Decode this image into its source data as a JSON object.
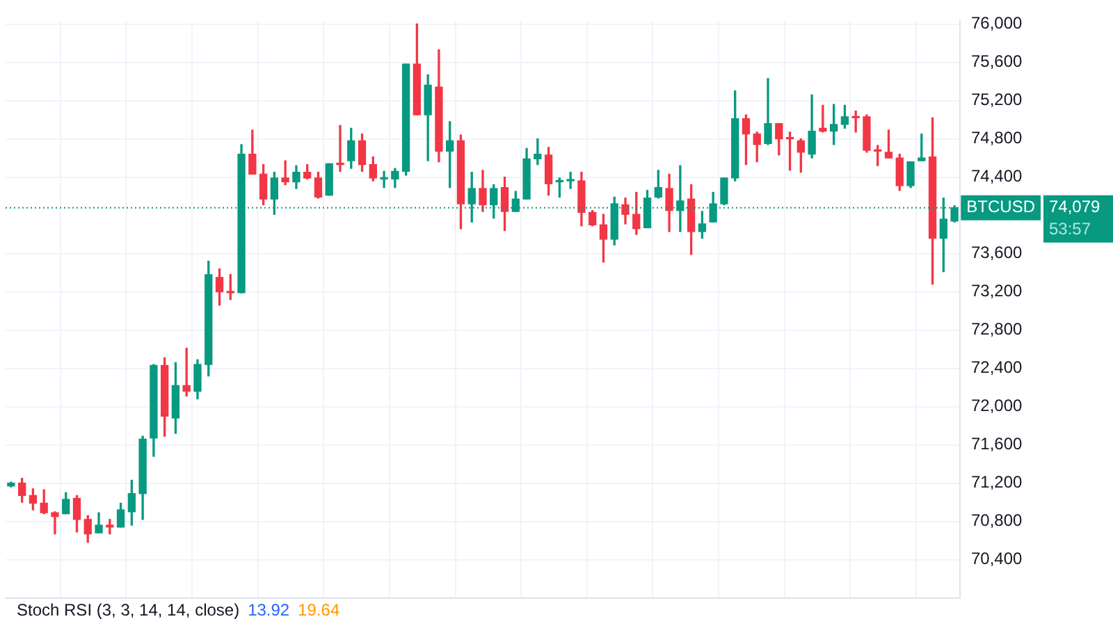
{
  "chart_data": {
    "type": "candlestick",
    "categories": [
      null,
      null,
      null,
      null,
      null,
      null,
      null,
      null,
      null,
      null,
      null,
      null,
      null,
      null,
      null,
      null,
      null,
      null,
      null,
      null,
      null,
      null,
      null,
      null,
      null,
      null,
      null,
      null,
      null,
      null,
      null,
      null,
      null,
      null,
      null,
      null,
      null,
      null,
      null,
      null,
      null,
      null,
      null,
      null,
      null,
      null,
      null,
      null,
      null,
      null,
      null,
      null,
      null,
      null,
      null,
      null,
      null,
      null,
      null,
      null,
      null,
      null,
      null,
      null,
      null,
      null,
      null,
      null,
      null,
      null,
      null,
      null,
      null,
      null,
      null,
      null,
      null,
      null,
      null,
      null,
      null,
      null,
      null,
      null,
      null,
      null,
      null
    ],
    "ohlc": [
      [
        71170,
        71210,
        71160,
        71200
      ],
      [
        71200,
        71250,
        71000,
        71070
      ],
      [
        71070,
        71140,
        70920,
        70990
      ],
      [
        70990,
        71130,
        70880,
        70890
      ],
      [
        70890,
        70900,
        70670,
        70850
      ],
      [
        70880,
        71100,
        70880,
        71030
      ],
      [
        71040,
        71070,
        70690,
        70820
      ],
      [
        70820,
        70860,
        70580,
        70670
      ],
      [
        70680,
        70890,
        70680,
        70760
      ],
      [
        70760,
        70820,
        70670,
        70740
      ],
      [
        70740,
        70990,
        70740,
        70920
      ],
      [
        70900,
        71230,
        70760,
        71090
      ],
      [
        71090,
        71690,
        70820,
        71660
      ],
      [
        71670,
        72440,
        71480,
        72430
      ],
      [
        72430,
        72510,
        71690,
        71900
      ],
      [
        71880,
        72460,
        71720,
        72220
      ],
      [
        72220,
        72610,
        72110,
        72160
      ],
      [
        72160,
        72490,
        72080,
        72440
      ],
      [
        72440,
        73520,
        72320,
        73380
      ],
      [
        73350,
        73440,
        73060,
        73200
      ],
      [
        73200,
        73380,
        73120,
        73190
      ],
      [
        73190,
        74740,
        73190,
        74640
      ],
      [
        74640,
        74890,
        74430,
        74430
      ],
      [
        74430,
        74530,
        74110,
        74170
      ],
      [
        74170,
        74450,
        74010,
        74390
      ],
      [
        74390,
        74570,
        74320,
        74350
      ],
      [
        74350,
        74520,
        74280,
        74450
      ],
      [
        74450,
        74530,
        74380,
        74390
      ],
      [
        74390,
        74450,
        74180,
        74190
      ],
      [
        74210,
        74540,
        74210,
        74540
      ],
      [
        74540,
        74940,
        74460,
        74530
      ],
      [
        74570,
        74910,
        74490,
        74780
      ],
      [
        74780,
        74850,
        74460,
        74530
      ],
      [
        74530,
        74610,
        74360,
        74390
      ],
      [
        74380,
        74460,
        74290,
        74390
      ],
      [
        74380,
        74490,
        74290,
        74460
      ],
      [
        74460,
        75580,
        74420,
        75580
      ],
      [
        75580,
        76000,
        75050,
        75050
      ],
      [
        75050,
        75470,
        74570,
        75360
      ],
      [
        75340,
        75730,
        74560,
        74670
      ],
      [
        74670,
        74980,
        74290,
        74780
      ],
      [
        74780,
        74840,
        73860,
        74120
      ],
      [
        74120,
        74450,
        73930,
        74280
      ],
      [
        74280,
        74470,
        74040,
        74110
      ],
      [
        74110,
        74320,
        73970,
        74280
      ],
      [
        74290,
        74400,
        73840,
        74040
      ],
      [
        74040,
        74250,
        74040,
        74170
      ],
      [
        74170,
        74700,
        74170,
        74590
      ],
      [
        74590,
        74800,
        74530,
        74640
      ],
      [
        74630,
        74710,
        74210,
        74330
      ],
      [
        74350,
        74390,
        74190,
        74360
      ],
      [
        74360,
        74450,
        74280,
        74360
      ],
      [
        74360,
        74450,
        73890,
        74030
      ],
      [
        74030,
        74050,
        73890,
        73900
      ],
      [
        73900,
        74010,
        73510,
        73750
      ],
      [
        73750,
        74190,
        73690,
        74120
      ],
      [
        74110,
        74180,
        73910,
        74010
      ],
      [
        74010,
        74240,
        73800,
        73860
      ],
      [
        73870,
        74260,
        73870,
        74180
      ],
      [
        74190,
        74470,
        74180,
        74290
      ],
      [
        74280,
        74430,
        73830,
        74050
      ],
      [
        74050,
        74520,
        73830,
        74150
      ],
      [
        74170,
        74320,
        73590,
        73830
      ],
      [
        73830,
        74040,
        73760,
        73910
      ],
      [
        73930,
        74240,
        73930,
        74120
      ],
      [
        74120,
        74390,
        74110,
        74390
      ],
      [
        74390,
        75300,
        74360,
        75010
      ],
      [
        75010,
        75050,
        74530,
        74850
      ],
      [
        74850,
        74870,
        74560,
        74740
      ],
      [
        74750,
        75430,
        74740,
        74960
      ],
      [
        74960,
        74960,
        74630,
        74800
      ],
      [
        74810,
        74870,
        74470,
        74800
      ],
      [
        74780,
        74800,
        74450,
        74660
      ],
      [
        74640,
        75260,
        74600,
        74880
      ],
      [
        74910,
        75150,
        74870,
        74880
      ],
      [
        74880,
        75160,
        74740,
        74950
      ],
      [
        74950,
        75150,
        74910,
        75030
      ],
      [
        75030,
        75090,
        74870,
        75020
      ],
      [
        75030,
        75050,
        74660,
        74680
      ],
      [
        74680,
        74730,
        74520,
        74670
      ],
      [
        74660,
        74890,
        74600,
        74600
      ],
      [
        74600,
        74640,
        74260,
        74310
      ],
      [
        74310,
        74560,
        74290,
        74560
      ],
      [
        74570,
        74850,
        74570,
        74600
      ],
      [
        74610,
        75020,
        73280,
        73760
      ],
      [
        73760,
        74180,
        73410,
        73960
      ],
      [
        73940,
        74100,
        73930,
        74079
      ]
    ],
    "ylim": [
      70000,
      76030
    ],
    "yticks": [
      {
        "value": 70400,
        "label": "70,400"
      },
      {
        "value": 70800,
        "label": "70,800"
      },
      {
        "value": 71200,
        "label": "71,200"
      },
      {
        "value": 71600,
        "label": "71,600"
      },
      {
        "value": 72000,
        "label": "72,000"
      },
      {
        "value": 72400,
        "label": "72,400"
      },
      {
        "value": 72800,
        "label": "72,800"
      },
      {
        "value": 73200,
        "label": "73,200"
      },
      {
        "value": 73600,
        "label": "73,600"
      },
      {
        "value": 74400,
        "label": "74,400"
      },
      {
        "value": 74800,
        "label": "74,800"
      },
      {
        "value": 75200,
        "label": "75,200"
      },
      {
        "value": 75600,
        "label": "75,600"
      },
      {
        "value": 76000,
        "label": "76,000"
      }
    ],
    "grid": true,
    "tick_labels": "y",
    "ref_lines": [
      {
        "axis": "y",
        "value": 74079,
        "label": "BTCUSD",
        "color": "#089981",
        "line_style": "dotted"
      }
    ],
    "annotations": [
      "74,079",
      "53:57",
      "Stoch RSI (3, 3, 14, 14, close)",
      "13.92",
      "19.64"
    ]
  }
}
